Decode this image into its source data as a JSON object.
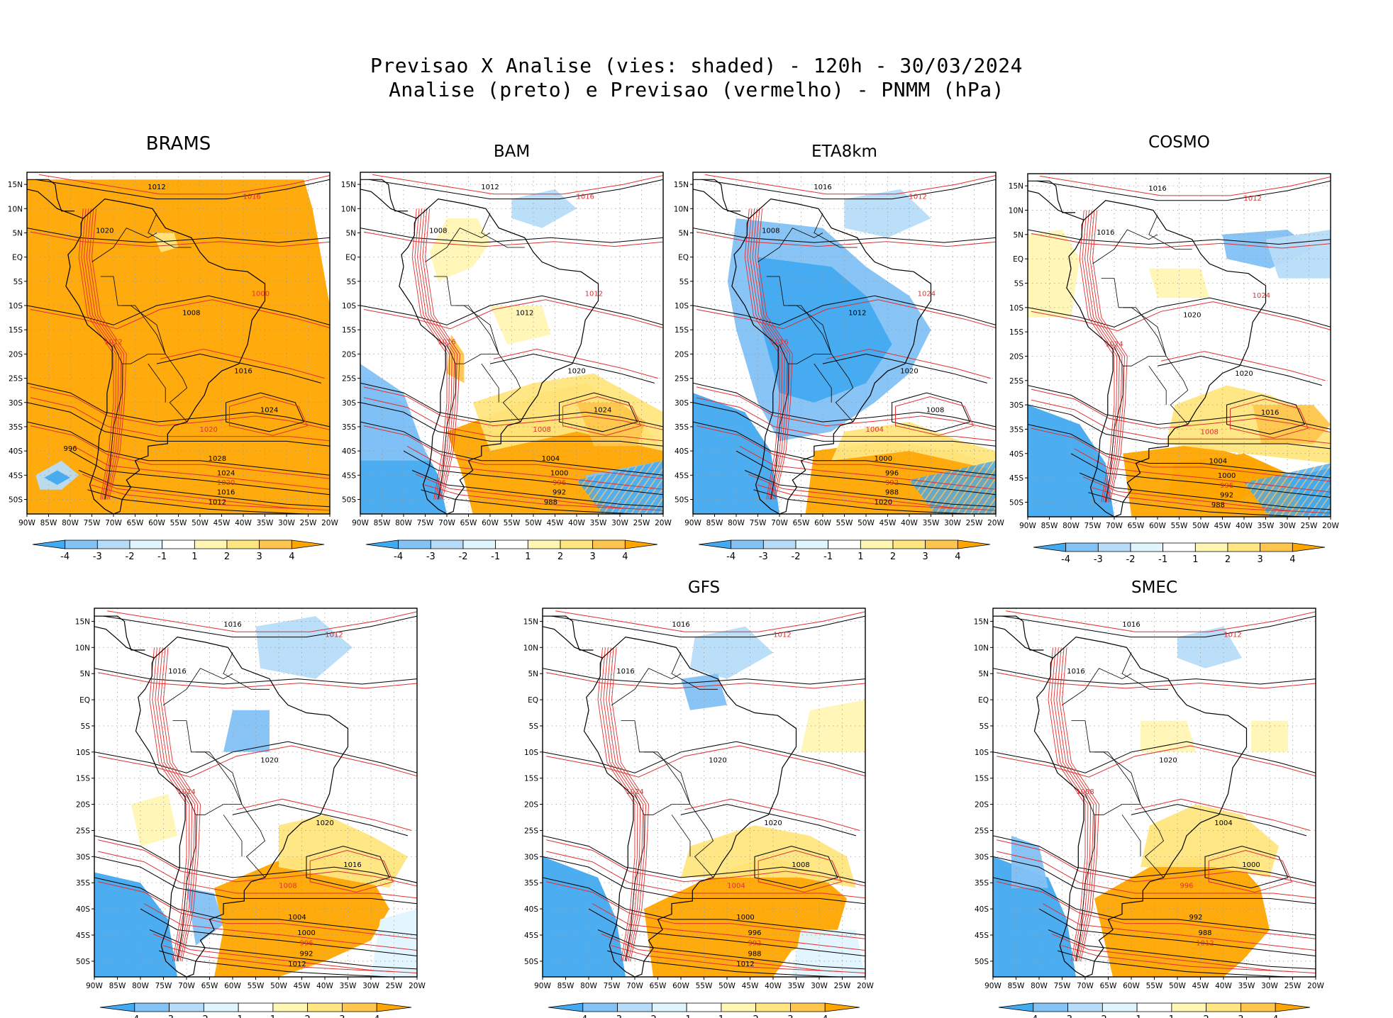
{
  "title": {
    "line1": "Previsao X Analise (vies: shaded) - 120h - 30/03/2024",
    "line2": "Analise (preto) e Previsao (vermelho) - PNMM (hPa)"
  },
  "axes": {
    "lat_labels": [
      "15N",
      "10N",
      "5N",
      "EQ",
      "5S",
      "10S",
      "15S",
      "20S",
      "25S",
      "30S",
      "35S",
      "40S",
      "45S",
      "50S"
    ],
    "lon_labels": [
      "90W",
      "85W",
      "80W",
      "75W",
      "70W",
      "65W",
      "60W",
      "55W",
      "50W",
      "45W",
      "40W",
      "35W",
      "30W",
      "25W",
      "20W"
    ]
  },
  "colorbar": {
    "labels": [
      "-4",
      "-3",
      "-2",
      "-1",
      "1",
      "2",
      "3",
      "4"
    ],
    "colors": [
      "#42aaf0",
      "#82c2f5",
      "#b7dcf9",
      "#e1f5ff",
      "#ffffff",
      "#fff6b3",
      "#ffe680",
      "#ffc64d",
      "#ffa500"
    ]
  },
  "colors": {
    "analysis_contour": "#000000",
    "forecast_contour": "#e03030",
    "positive_bias": "#ffa500",
    "negative_bias": "#42aaf0"
  },
  "panels": [
    {
      "id": "brams",
      "name": "BRAMS",
      "isobars": [
        "1012",
        "1016",
        "1020",
        "1008",
        "1012",
        "1016",
        "1024",
        "1020",
        "1028",
        "1024",
        "1020",
        "1016",
        "1012",
        "1000",
        "996"
      ]
    },
    {
      "id": "bam",
      "name": "BAM",
      "isobars": [
        "1012",
        "1016",
        "1008",
        "1012",
        "1016",
        "1020",
        "1024",
        "1008",
        "1004",
        "1000",
        "996",
        "992",
        "988",
        "1012"
      ]
    },
    {
      "id": "eta8km",
      "name": "ETA8km",
      "isobars": [
        "1016",
        "1012",
        "1008",
        "1012",
        "1016",
        "1020",
        "1008",
        "1004",
        "1000",
        "996",
        "992",
        "988",
        "1020",
        "1024"
      ]
    },
    {
      "id": "cosmo",
      "name": "COSMO",
      "isobars": [
        "1016",
        "1012",
        "1016",
        "1020",
        "1024",
        "1020",
        "1016",
        "1008",
        "1004",
        "1000",
        "996",
        "992",
        "988",
        "1024"
      ]
    },
    {
      "id": "unnamed",
      "name": "",
      "isobars": [
        "1016",
        "1012",
        "1016",
        "1020",
        "1024",
        "1020",
        "1016",
        "1008",
        "1004",
        "1000",
        "996",
        "992",
        "1012"
      ]
    },
    {
      "id": "gfs",
      "name": "GFS",
      "isobars": [
        "1016",
        "1012",
        "1016",
        "1020",
        "1024",
        "1020",
        "1008",
        "1004",
        "1000",
        "996",
        "992",
        "988",
        "1012"
      ]
    },
    {
      "id": "smec",
      "name": "SMEC",
      "isobars": [
        "1016",
        "1012",
        "1016",
        "1020",
        "1008",
        "1004",
        "1000",
        "996",
        "992",
        "988",
        "1012"
      ]
    }
  ]
}
